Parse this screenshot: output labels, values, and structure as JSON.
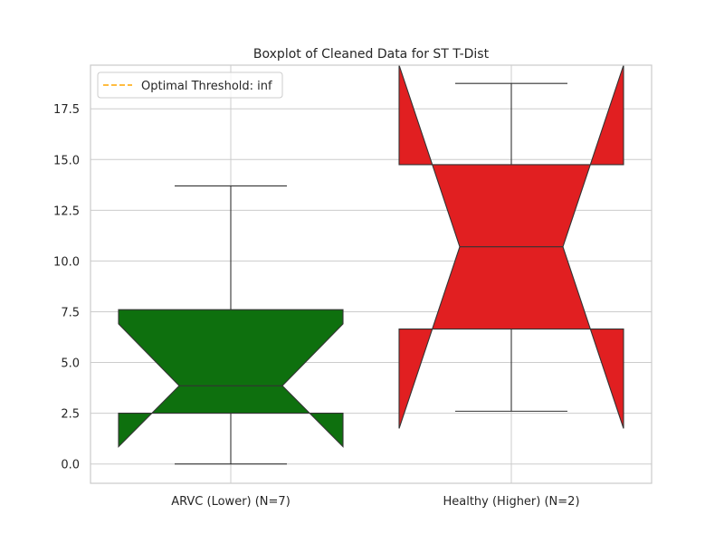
{
  "chart_data": {
    "type": "boxplot",
    "title": "Boxplot of Cleaned Data for ST T-Dist",
    "xlabel": "",
    "ylabel": "",
    "ylim": [
      -0.95,
      19.65
    ],
    "yticks": [
      0.0,
      2.5,
      5.0,
      7.5,
      10.0,
      12.5,
      15.0,
      17.5
    ],
    "ytick_labels": [
      "0.0",
      "2.5",
      "5.0",
      "7.5",
      "10.0",
      "12.5",
      "15.0",
      "17.5"
    ],
    "grid": true,
    "notched": true,
    "categories": [
      "ARVC (Lower) (N=7)",
      "Healthy (Higher) (N=2)"
    ],
    "boxes": [
      {
        "whisker_low": 0.0,
        "q1": 2.5,
        "notch_low": 0.85,
        "median": 3.85,
        "notch_high": 6.9,
        "q3": 7.6,
        "whisker_high": 13.7,
        "color": "#0e700e"
      },
      {
        "whisker_low": 2.6,
        "q1": 6.65,
        "notch_low": 1.75,
        "median": 10.7,
        "notch_high": 19.65,
        "q3": 14.75,
        "whisker_high": 18.75,
        "color": "#e11f21"
      }
    ],
    "legend": {
      "placement": "top-left",
      "entries": [
        {
          "label": "Optimal Threshold: inf",
          "color": "#ffa500",
          "style": "dashed"
        }
      ]
    }
  }
}
